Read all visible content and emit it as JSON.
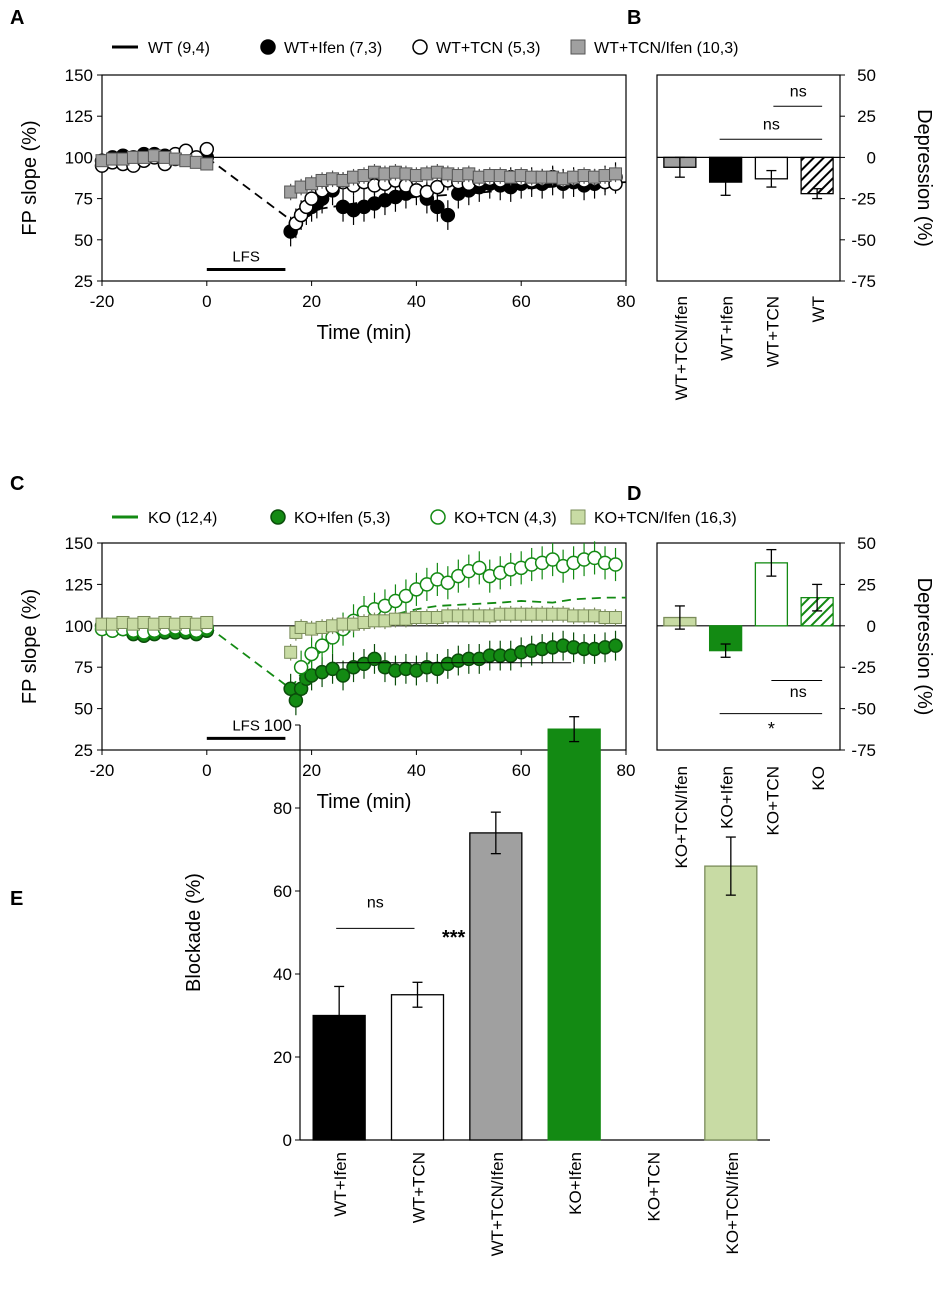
{
  "colors": {
    "black": "#000000",
    "gray": "#a0a0a0",
    "green": "#138a13",
    "light_green": "#c8dba4",
    "white": "#ffffff"
  },
  "chart_data": [
    {
      "panel": "A",
      "type": "scatter",
      "xlabel": "Time (min)",
      "ylabel": "FP slope (%)",
      "xlim": [
        -20,
        80
      ],
      "ylim": [
        25,
        150
      ],
      "xticks": [
        -20,
        0,
        20,
        40,
        60,
        80
      ],
      "yticks": [
        25,
        50,
        75,
        100,
        125,
        150
      ],
      "baseline": 100,
      "lfs": {
        "label": "LFS",
        "x": [
          0,
          15
        ],
        "y": 32
      },
      "legend": [
        {
          "label": "WT (9,4)",
          "marker": "line"
        },
        {
          "label": "WT+Ifen (7,3)",
          "marker": "circle-filled"
        },
        {
          "label": "WT+TCN (5,3)",
          "marker": "circle-open"
        },
        {
          "label": "WT+TCN/Ifen (10,3)",
          "marker": "square-gray"
        }
      ],
      "series": [
        {
          "name": "WT",
          "style": "dashed",
          "color": "#000000",
          "x": [
            0,
            16,
            20,
            30,
            40,
            50,
            60,
            70,
            80
          ],
          "y": [
            100,
            62,
            68,
            73,
            76,
            78,
            81,
            83,
            85
          ]
        },
        {
          "name": "WT+Ifen",
          "marker": "circle",
          "fill": "#000000",
          "stroke": "#000000",
          "x": [
            -20,
            -18,
            -16,
            -14,
            -12,
            -10,
            -8,
            -6,
            -4,
            -2,
            0,
            16,
            17,
            18,
            19,
            20,
            21,
            22,
            24,
            26,
            28,
            30,
            32,
            34,
            36,
            38,
            40,
            42,
            44,
            46,
            48,
            50,
            52,
            54,
            56,
            58,
            60,
            62,
            64,
            66,
            68,
            70,
            72,
            74,
            76,
            78
          ],
          "y": [
            98,
            100,
            101,
            100,
            102,
            102,
            101,
            99,
            100,
            98,
            100,
            55,
            60,
            65,
            68,
            70,
            72,
            75,
            80,
            70,
            68,
            70,
            72,
            74,
            76,
            78,
            80,
            75,
            70,
            65,
            78,
            80,
            82,
            84,
            83,
            82,
            84,
            85,
            84,
            86,
            84,
            85,
            83,
            84,
            86,
            88
          ],
          "err": 9
        },
        {
          "name": "WT+TCN",
          "marker": "circle",
          "fill": "#ffffff",
          "stroke": "#000000",
          "x": [
            -20,
            -18,
            -16,
            -14,
            -12,
            -10,
            -8,
            -6,
            -4,
            -2,
            0,
            17,
            18,
            19,
            20,
            22,
            24,
            26,
            28,
            30,
            32,
            34,
            36,
            38,
            40,
            42,
            44,
            46,
            48,
            50,
            52,
            54,
            56,
            58,
            60,
            62,
            64,
            66,
            68,
            70,
            72,
            74,
            76,
            78
          ],
          "y": [
            95,
            97,
            96,
            95,
            98,
            100,
            96,
            102,
            104,
            100,
            105,
            60,
            65,
            70,
            75,
            80,
            82,
            85,
            83,
            85,
            83,
            84,
            86,
            83,
            80,
            79,
            82,
            86,
            85,
            84,
            86,
            87,
            86,
            88,
            87,
            86,
            87,
            88,
            86,
            87,
            86,
            87,
            85,
            84
          ],
          "err": 6
        },
        {
          "name": "WT+TCN/Ifen",
          "marker": "square",
          "fill": "#a0a0a0",
          "stroke": "#555555",
          "x": [
            -20,
            -18,
            -16,
            -14,
            -12,
            -10,
            -8,
            -6,
            -4,
            -2,
            0,
            16,
            18,
            20,
            22,
            24,
            26,
            28,
            30,
            32,
            34,
            36,
            38,
            40,
            42,
            44,
            46,
            48,
            50,
            52,
            54,
            56,
            58,
            60,
            62,
            64,
            66,
            68,
            70,
            72,
            74,
            76,
            78
          ],
          "y": [
            98,
            99,
            99,
            100,
            100,
            101,
            100,
            99,
            98,
            97,
            96,
            79,
            82,
            84,
            86,
            87,
            86,
            88,
            89,
            91,
            90,
            91,
            90,
            89,
            90,
            91,
            90,
            89,
            90,
            88,
            89,
            89,
            88,
            89,
            88,
            88,
            88,
            87,
            88,
            89,
            88,
            89,
            90
          ],
          "err": 5
        }
      ]
    },
    {
      "panel": "B",
      "type": "bar",
      "ylabel": "Depression (%)",
      "ylim": [
        -75,
        50
      ],
      "yticks": [
        -75,
        -50,
        -25,
        0,
        25,
        50
      ],
      "categories": [
        "WT+TCN/Ifen",
        "WT+Ifen",
        "WT+TCN",
        "WT"
      ],
      "values": [
        -6,
        -15,
        -13,
        -22
      ],
      "errors": [
        6,
        8,
        5,
        3
      ],
      "fills": [
        "#a0a0a0",
        "#000000",
        "#ffffff",
        "hatch-black"
      ],
      "annotations": [
        "ns",
        "ns"
      ]
    },
    {
      "panel": "C",
      "type": "scatter",
      "xlabel": "Time (min)",
      "ylabel": "FP slope (%)",
      "xlim": [
        -20,
        80
      ],
      "ylim": [
        25,
        150
      ],
      "xticks": [
        -20,
        0,
        20,
        40,
        60,
        80
      ],
      "yticks": [
        25,
        50,
        75,
        100,
        125,
        150
      ],
      "baseline": 100,
      "lfs": {
        "label": "LFS",
        "x": [
          0,
          15
        ],
        "y": 32
      },
      "legend": [
        {
          "label": "KO (12,4)",
          "marker": "line"
        },
        {
          "label": "KO+Ifen (5,3)",
          "marker": "circle-filled"
        },
        {
          "label": "KO+TCN (4,3)",
          "marker": "circle-open"
        },
        {
          "label": "KO+TCN/Ifen (16,3)",
          "marker": "square-lightgreen"
        }
      ],
      "series": [
        {
          "name": "KO",
          "style": "dashed",
          "color": "#138a13",
          "x": [
            0,
            16,
            20,
            24,
            28,
            32,
            36,
            40,
            44,
            50,
            56,
            60,
            66,
            70,
            76,
            80
          ],
          "y": [
            100,
            62,
            80,
            90,
            98,
            103,
            107,
            110,
            112,
            113,
            114,
            115,
            114,
            116,
            117,
            117
          ]
        },
        {
          "name": "KO+Ifen",
          "marker": "circle",
          "fill": "#138a13",
          "stroke": "#0a4d0a",
          "x": [
            -20,
            -18,
            -16,
            -14,
            -12,
            -10,
            -8,
            -6,
            -4,
            -2,
            0,
            16,
            17,
            18,
            19,
            20,
            22,
            24,
            26,
            28,
            30,
            32,
            34,
            36,
            38,
            40,
            42,
            44,
            46,
            48,
            50,
            52,
            54,
            56,
            58,
            60,
            62,
            64,
            66,
            68,
            70,
            72,
            74,
            76,
            78
          ],
          "y": [
            100,
            100,
            98,
            95,
            94,
            95,
            96,
            96,
            96,
            95,
            97,
            62,
            55,
            62,
            68,
            70,
            72,
            74,
            70,
            75,
            77,
            80,
            75,
            73,
            74,
            73,
            75,
            74,
            77,
            79,
            80,
            80,
            82,
            82,
            82,
            84,
            85,
            86,
            87,
            88,
            87,
            86,
            86,
            87,
            88
          ],
          "err": 9
        },
        {
          "name": "KO+TCN",
          "marker": "circle",
          "fill": "#ffffff",
          "stroke": "#138a13",
          "x": [
            -20,
            -18,
            -16,
            -14,
            -12,
            -10,
            -8,
            -6,
            -4,
            -2,
            0,
            18,
            20,
            22,
            24,
            26,
            28,
            30,
            32,
            34,
            36,
            38,
            40,
            42,
            44,
            46,
            48,
            50,
            52,
            54,
            56,
            58,
            60,
            62,
            64,
            66,
            68,
            70,
            72,
            74,
            76,
            78
          ],
          "y": [
            98,
            97,
            98,
            97,
            96,
            97,
            98,
            99,
            98,
            97,
            99,
            75,
            83,
            88,
            93,
            98,
            103,
            108,
            110,
            112,
            115,
            118,
            122,
            125,
            128,
            126,
            130,
            133,
            135,
            130,
            132,
            134,
            135,
            137,
            138,
            140,
            136,
            138,
            140,
            141,
            138,
            137
          ],
          "err": 10
        },
        {
          "name": "KO+TCN/Ifen",
          "marker": "square",
          "fill": "#c8dba4",
          "stroke": "#7a8c5a",
          "x": [
            -20,
            -18,
            -16,
            -14,
            -12,
            -10,
            -8,
            -6,
            -4,
            -2,
            0,
            16,
            17,
            18,
            20,
            22,
            24,
            26,
            28,
            30,
            32,
            34,
            36,
            38,
            40,
            42,
            44,
            46,
            48,
            50,
            52,
            54,
            56,
            58,
            60,
            62,
            64,
            66,
            68,
            70,
            72,
            74,
            76,
            78
          ],
          "y": [
            101,
            101,
            102,
            101,
            102,
            101,
            102,
            101,
            102,
            101,
            102,
            84,
            96,
            99,
            98,
            99,
            100,
            101,
            101,
            102,
            103,
            103,
            104,
            104,
            105,
            105,
            105,
            106,
            106,
            106,
            106,
            106,
            107,
            107,
            107,
            107,
            107,
            107,
            107,
            106,
            106,
            106,
            105,
            105
          ],
          "err": 5
        }
      ]
    },
    {
      "panel": "D",
      "type": "bar",
      "ylabel": "Depression (%)",
      "ylim": [
        -75,
        50
      ],
      "yticks": [
        -75,
        -50,
        -25,
        0,
        25,
        50
      ],
      "categories": [
        "KO+TCN/Ifen",
        "KO+Ifen",
        "KO+TCN",
        "KO"
      ],
      "values": [
        5,
        -15,
        38,
        17
      ],
      "errors": [
        7,
        4,
        8,
        8
      ],
      "fills": [
        "#c8dba4",
        "#138a13",
        "#ffffff",
        "hatch-green"
      ],
      "annotations": [
        "ns",
        "*"
      ]
    },
    {
      "panel": "E",
      "type": "bar",
      "ylabel": "Blockade (%)",
      "ylim": [
        0,
        100
      ],
      "yticks": [
        0,
        20,
        40,
        60,
        80,
        100
      ],
      "categories": [
        "WT+Ifen",
        "WT+TCN",
        "WT+TCN/Ifen",
        "KO+Ifen",
        "KO+TCN",
        "KO+TCN/Ifen"
      ],
      "values": [
        30,
        35,
        74,
        99,
        0,
        66
      ],
      "errors": [
        7,
        3,
        5,
        3,
        0,
        7
      ],
      "fills": [
        "#000000",
        "#ffffff",
        "#a0a0a0",
        "#138a13",
        "#ffffff",
        "#c8dba4"
      ],
      "annotations": [
        "ns",
        "***"
      ]
    }
  ],
  "labels": {
    "panel_a": "A",
    "panel_b": "B",
    "panel_c": "C",
    "panel_d": "D",
    "panel_e": "E"
  }
}
